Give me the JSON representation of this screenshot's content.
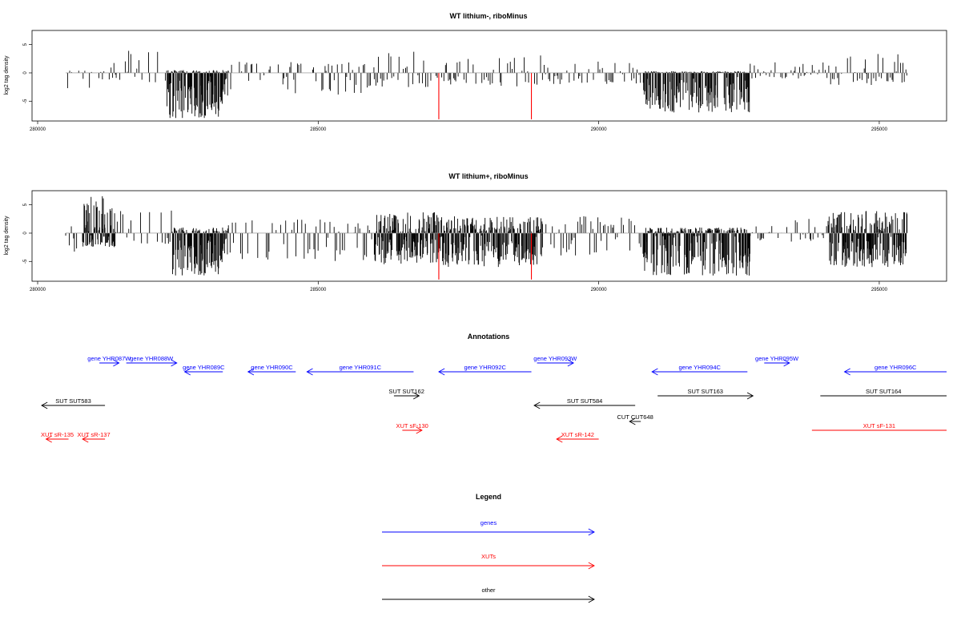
{
  "chart_data": [
    {
      "type": "bar",
      "title": "WT lithium-, riboMinus",
      "ylabel": "log2 tag density",
      "xlabel": "",
      "xlim": [
        279900,
        296200
      ],
      "ylim": [
        -8.5,
        7.5
      ],
      "xticks": [
        280000,
        285000,
        290000,
        295000
      ],
      "yticks": [
        -5,
        0,
        5
      ],
      "xtick_labels": [
        "280000",
        "285000",
        "290000",
        "295000"
      ],
      "ytick_labels": [
        "-5",
        "0",
        "5"
      ],
      "baseline": [
        280500,
        295500
      ],
      "grid": false,
      "marked_positions": [
        287150,
        288800
      ],
      "marked_values": [
        -8.2,
        -8.2
      ],
      "profile": [
        {
          "x0": 280500,
          "x1": 281000,
          "min": -3.2,
          "max": 0.5
        },
        {
          "x0": 281000,
          "x1": 281400,
          "min": -1.5,
          "max": 2.0
        },
        {
          "x0": 281400,
          "x1": 282300,
          "min": -1.8,
          "max": 4.0
        },
        {
          "x0": 282300,
          "x1": 283400,
          "min": -8.0,
          "max": 0.5
        },
        {
          "x0": 283400,
          "x1": 286000,
          "min": -4.0,
          "max": 2.0
        },
        {
          "x0": 286000,
          "x1": 287200,
          "min": -2.5,
          "max": 4.0
        },
        {
          "x0": 287200,
          "x1": 289000,
          "min": -2.5,
          "max": 3.2
        },
        {
          "x0": 289000,
          "x1": 290800,
          "min": -2.0,
          "max": 2.2
        },
        {
          "x0": 290800,
          "x1": 292700,
          "min": -7.0,
          "max": 0.3
        },
        {
          "x0": 292700,
          "x1": 294100,
          "min": -1.0,
          "max": 2.0
        },
        {
          "x0": 294100,
          "x1": 295500,
          "min": -2.2,
          "max": 3.6
        }
      ]
    },
    {
      "type": "bar",
      "title": "WT lithium+, riboMinus",
      "ylabel": "log2 tag density",
      "xlabel": "",
      "xlim": [
        279900,
        296200
      ],
      "ylim": [
        -8.5,
        7.5
      ],
      "xticks": [
        280000,
        285000,
        290000,
        295000
      ],
      "yticks": [
        -5,
        0,
        5
      ],
      "xtick_labels": [
        "280000",
        "285000",
        "290000",
        "295000"
      ],
      "ytick_labels": [
        "-5",
        "0",
        "5"
      ],
      "baseline": [
        280500,
        295500
      ],
      "grid": false,
      "marked_positions": [
        287150,
        288800
      ],
      "marked_values": [
        -8.2,
        -8.2
      ],
      "profile": [
        {
          "x0": 280500,
          "x1": 280800,
          "min": -3.5,
          "max": 2.0
        },
        {
          "x0": 280800,
          "x1": 281400,
          "min": -2.5,
          "max": 6.8
        },
        {
          "x0": 281400,
          "x1": 282400,
          "min": -2.0,
          "max": 4.0
        },
        {
          "x0": 282400,
          "x1": 283400,
          "min": -7.5,
          "max": 1.0
        },
        {
          "x0": 283400,
          "x1": 286000,
          "min": -5.0,
          "max": 2.5
        },
        {
          "x0": 286000,
          "x1": 287200,
          "min": -5.5,
          "max": 3.8
        },
        {
          "x0": 287200,
          "x1": 289000,
          "min": -6.0,
          "max": 3.0
        },
        {
          "x0": 289000,
          "x1": 290800,
          "min": -4.0,
          "max": 3.0
        },
        {
          "x0": 290800,
          "x1": 292700,
          "min": -7.5,
          "max": 1.0
        },
        {
          "x0": 292700,
          "x1": 294100,
          "min": -1.5,
          "max": 3.0
        },
        {
          "x0": 294100,
          "x1": 295500,
          "min": -6.0,
          "max": 4.0
        }
      ]
    }
  ],
  "annotations": {
    "title": "Annotations",
    "features": [
      {
        "label": "gene YHR087W",
        "color": "#0000ff",
        "start": 281100,
        "end": 281450,
        "row": 0,
        "dir": "right"
      },
      {
        "label": "gene YHR088W",
        "color": "#0000ff",
        "start": 281580,
        "end": 282480,
        "row": 0,
        "dir": "right"
      },
      {
        "label": "gene YHR089C",
        "color": "#0000ff",
        "start": 282620,
        "end": 283300,
        "row": 1,
        "dir": "left"
      },
      {
        "label": "gene YHR090C",
        "color": "#0000ff",
        "start": 283750,
        "end": 284600,
        "row": 1,
        "dir": "left"
      },
      {
        "label": "gene YHR091C",
        "color": "#0000ff",
        "start": 284800,
        "end": 286700,
        "row": 1,
        "dir": "left"
      },
      {
        "label": "gene YHR092C",
        "color": "#0000ff",
        "start": 287150,
        "end": 288800,
        "row": 1,
        "dir": "left"
      },
      {
        "label": "gene YHR093W",
        "color": "#0000ff",
        "start": 288900,
        "end": 289550,
        "row": 0,
        "dir": "right"
      },
      {
        "label": "gene YHR094C",
        "color": "#0000ff",
        "start": 290950,
        "end": 292650,
        "row": 1,
        "dir": "left"
      },
      {
        "label": "gene YHR095W",
        "color": "#0000ff",
        "start": 292950,
        "end": 293400,
        "row": 0,
        "dir": "right"
      },
      {
        "label": "gene YHR096C",
        "color": "#0000ff",
        "start": 294380,
        "end": 296200,
        "row": 1,
        "dir": "left"
      },
      {
        "label": "SUT SUT583",
        "color": "#000000",
        "start": 280000,
        "end": 281200,
        "row": 3,
        "dir": "left"
      },
      {
        "label": "SUT SUT162",
        "color": "#000000",
        "start": 286350,
        "end": 286800,
        "row": 2,
        "dir": "right"
      },
      {
        "label": "SUT SUT584",
        "color": "#000000",
        "start": 288850,
        "end": 290650,
        "row": 3,
        "dir": "left"
      },
      {
        "label": "SUT SUT163",
        "color": "#000000",
        "start": 291050,
        "end": 292750,
        "row": 2,
        "dir": "right"
      },
      {
        "label": "SUT SUT164",
        "color": "#000000",
        "start": 293950,
        "end": 296200,
        "row": 2,
        "dir": "none"
      },
      {
        "label": "CUT CUT648",
        "color": "#000000",
        "start": 290550,
        "end": 290750,
        "row": 4,
        "dir": "left"
      },
      {
        "label": "XUT sR-135",
        "color": "#ff0000",
        "start": 280150,
        "end": 280550,
        "row": 6,
        "dir": "left"
      },
      {
        "label": "XUT sR-137",
        "color": "#ff0000",
        "start": 280800,
        "end": 281200,
        "row": 6,
        "dir": "left"
      },
      {
        "label": "XUT sF-130",
        "color": "#ff0000",
        "start": 286500,
        "end": 286850,
        "row": 5,
        "dir": "right"
      },
      {
        "label": "XUT sR-142",
        "color": "#ff0000",
        "start": 289250,
        "end": 290000,
        "row": 6,
        "dir": "left"
      },
      {
        "label": "XUT sF-131",
        "color": "#ff0000",
        "start": 293800,
        "end": 296200,
        "row": 5,
        "dir": "none"
      }
    ]
  },
  "legend": {
    "title": "Legend",
    "items": [
      {
        "label": "genes",
        "color": "#0000ff"
      },
      {
        "label": "XUTs",
        "color": "#ff0000"
      },
      {
        "label": "other",
        "color": "#000000"
      }
    ]
  }
}
